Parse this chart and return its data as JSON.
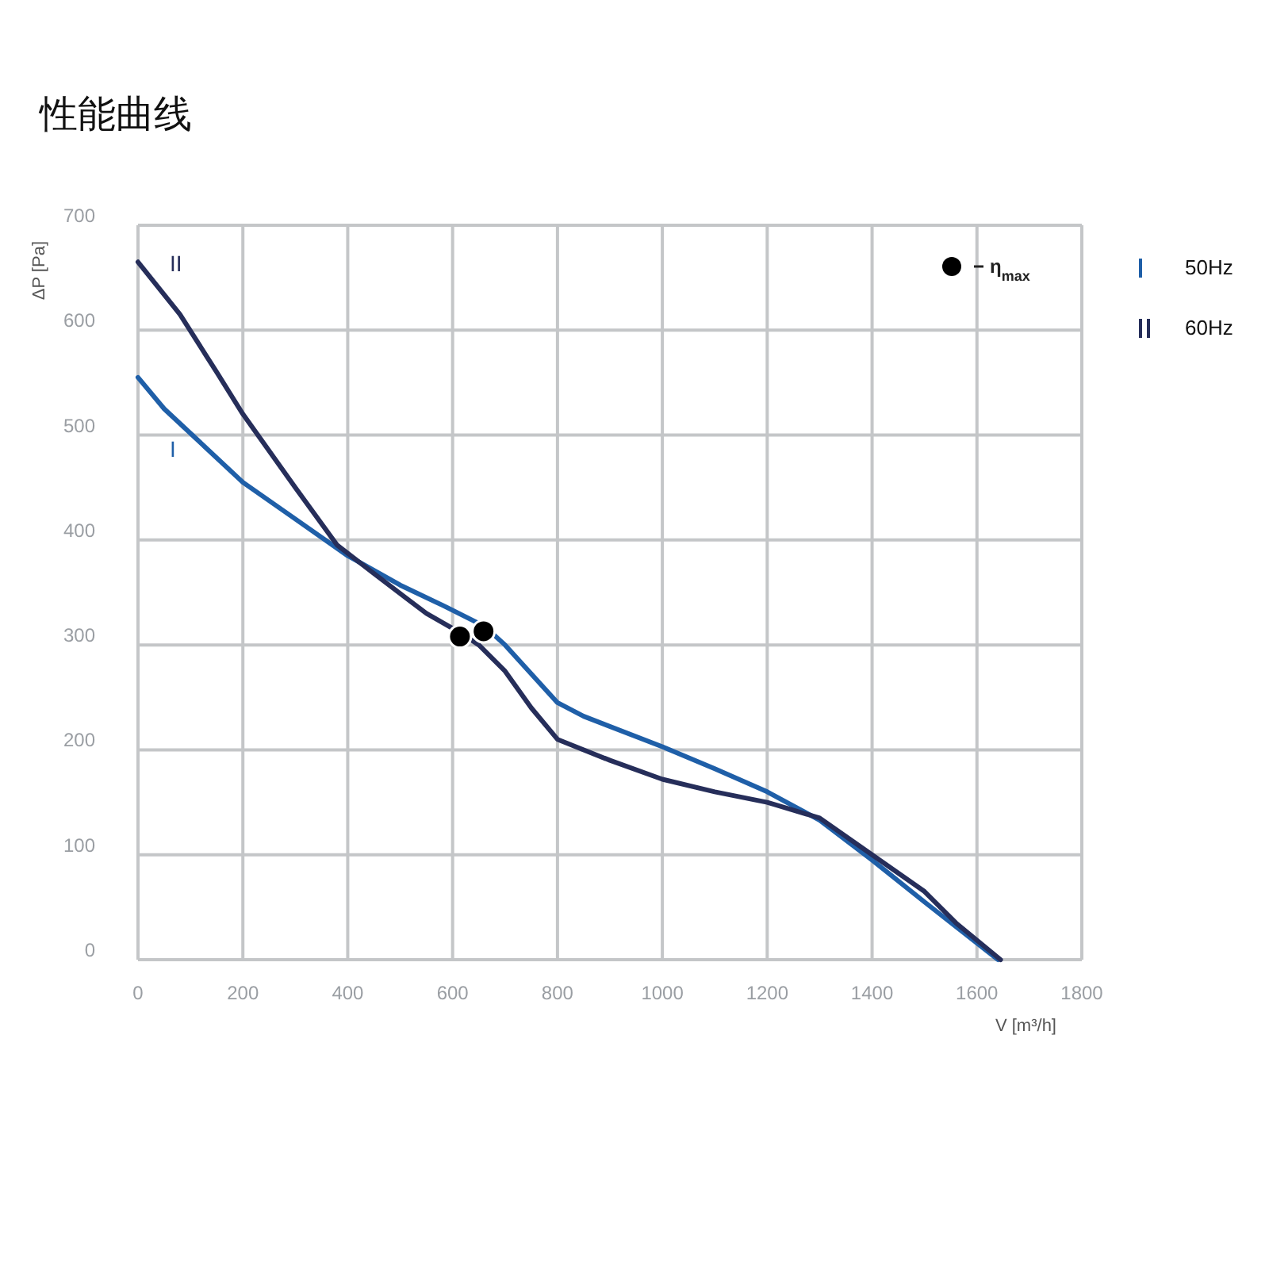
{
  "chart_data": {
    "type": "line",
    "title": "性能曲线",
    "xlabel": "V [m³/h]",
    "ylabel": "ΔP [Pa]",
    "xlim": [
      0,
      1800
    ],
    "ylim": [
      0,
      700
    ],
    "xticks": [
      0,
      200,
      400,
      600,
      800,
      1000,
      1200,
      1400,
      1600,
      1800
    ],
    "yticks": [
      0,
      100,
      200,
      300,
      400,
      500,
      600,
      700
    ],
    "grid": true,
    "legend": "top right",
    "marker": "none",
    "line_style": "solid",
    "series": [
      {
        "name": "50Hz",
        "color": "#1f5fa8",
        "x": [
          0,
          50,
          200,
          300,
          400,
          500,
          580,
          660,
          700,
          800,
          850,
          1000,
          1100,
          1200,
          1300,
          1400,
          1500,
          1640
        ],
        "values": [
          555,
          525,
          455,
          420,
          385,
          357,
          338,
          318,
          300,
          245,
          232,
          203,
          182,
          160,
          133,
          95,
          55,
          0
        ]
      },
      {
        "name": "60Hz",
        "color": "#262e5a",
        "x": [
          0,
          80,
          150,
          200,
          300,
          380,
          450,
          550,
          620,
          650,
          700,
          750,
          800,
          900,
          1000,
          1100,
          1200,
          1300,
          1400,
          1500,
          1560,
          1645
        ],
        "values": [
          665,
          615,
          560,
          520,
          450,
          395,
          368,
          330,
          310,
          300,
          275,
          240,
          210,
          190,
          172,
          160,
          150,
          135,
          100,
          65,
          35,
          0
        ]
      },
      {
        "name": "η$_{max}$",
        "type": "scatter",
        "marker": "circle",
        "color": "#000000",
        "x": [
          614,
          659
        ],
        "values": [
          308,
          313
        ]
      }
    ],
    "annotations": [
      "I",
      "II"
    ]
  }
}
